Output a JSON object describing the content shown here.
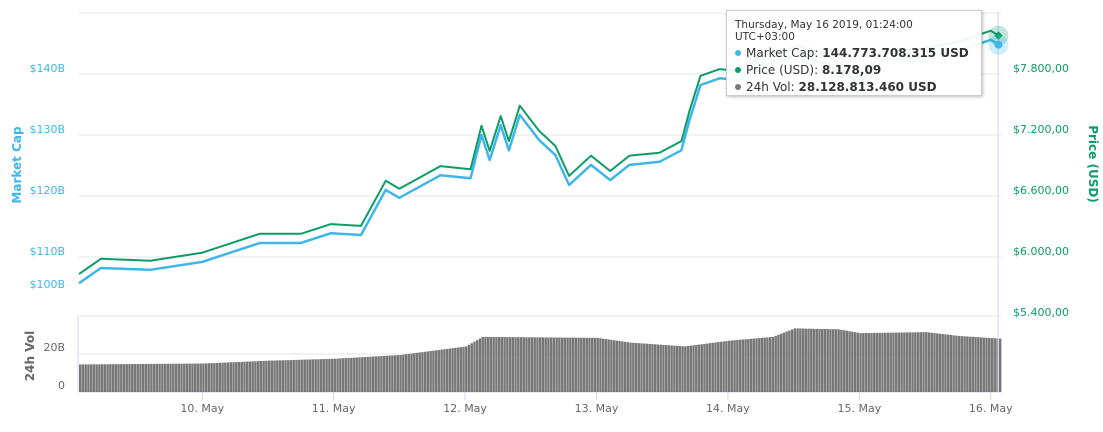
{
  "chart_data": {
    "type": "line",
    "xlabel": "",
    "x_ticks": [
      "10. May",
      "11. May",
      "12. May",
      "13. May",
      "14. May",
      "15. May",
      "16. May"
    ],
    "x_tick_dates": [
      "2019-05-10T00:00",
      "2019-05-11T00:00",
      "2019-05-12T00:00",
      "2019-05-13T00:00",
      "2019-05-14T00:00",
      "2019-05-15T00:00",
      "2019-05-16T00:00"
    ],
    "x_range": [
      "2019-05-09T01:30",
      "2019-05-16T01:30"
    ],
    "grid": true,
    "left_axis": {
      "label": "Market Cap",
      "ticks": [
        "$100B",
        "$110B",
        "$120B",
        "$130B",
        "$140B"
      ],
      "tick_values": [
        100,
        110,
        120,
        130,
        140
      ],
      "color": "#3fb6ea"
    },
    "right_axis": {
      "label": "Price (USD)",
      "ticks": [
        "$5.400,00",
        "$6.000,00",
        "$6.600,00",
        "$7.200,00",
        "$7.800,00"
      ],
      "tick_values": [
        5400,
        6000,
        6600,
        7200,
        7800
      ],
      "color": "#0c9d66"
    },
    "volume_axis": {
      "label": "24h Vol",
      "ticks": [
        "0",
        "20B"
      ],
      "tick_values": [
        0,
        20
      ],
      "range": [
        0,
        40
      ],
      "color": "#777777"
    },
    "x": [
      "2019-05-09T01:30",
      "2019-05-09T05:30",
      "2019-05-09T14:30",
      "2019-05-10T00:00",
      "2019-05-10T10:30",
      "2019-05-10T18:00",
      "2019-05-10T23:30",
      "2019-05-11T05:00",
      "2019-05-11T09:30",
      "2019-05-11T12:00",
      "2019-05-11T19:30",
      "2019-05-12T01:00",
      "2019-05-12T03:00",
      "2019-05-12T04:30",
      "2019-05-12T06:30",
      "2019-05-12T08:00",
      "2019-05-12T10:00",
      "2019-05-12T13:30",
      "2019-05-12T16:30",
      "2019-05-12T19:00",
      "2019-05-12T23:00",
      "2019-05-13T02:30",
      "2019-05-13T06:00",
      "2019-05-13T11:30",
      "2019-05-13T15:30",
      "2019-05-13T17:00",
      "2019-05-13T19:00",
      "2019-05-13T22:30",
      "2019-05-14T02:00",
      "2019-05-14T06:00",
      "2019-05-14T13:00",
      "2019-05-14T18:30",
      "2019-05-15T00:00",
      "2019-05-15T04:00",
      "2019-05-15T11:00",
      "2019-05-15T18:30",
      "2019-05-16T00:00",
      "2019-05-16T01:24"
    ],
    "series": [
      {
        "name": "Market Cap",
        "unit": "B USD",
        "color": "#3fb6ea",
        "values": [
          105.7,
          108.2,
          107.9,
          109.2,
          112.3,
          112.3,
          113.9,
          113.6,
          121.0,
          119.7,
          123.4,
          122.9,
          130.0,
          125.9,
          131.6,
          127.5,
          133.3,
          129.2,
          126.7,
          121.8,
          125.1,
          122.6,
          125.1,
          125.6,
          127.5,
          132.5,
          138.2,
          139.3,
          139.0,
          141.5,
          143.1,
          141.5,
          136.6,
          142.3,
          142.6,
          143.9,
          145.6,
          144.8
        ]
      },
      {
        "name": "Price (USD)",
        "unit": "USD",
        "color": "#0c9d66",
        "values": [
          5832,
          5982,
          5964,
          6042,
          6228,
          6228,
          6324,
          6306,
          6750,
          6672,
          6894,
          6864,
          7290,
          7044,
          7386,
          7140,
          7488,
          7242,
          7092,
          6798,
          6996,
          6846,
          6996,
          7026,
          7140,
          7440,
          7782,
          7848,
          7830,
          7980,
          8076,
          7980,
          7686,
          8028,
          8046,
          8124,
          8226,
          8178
        ]
      }
    ],
    "volume": {
      "name": "24h Vol",
      "unit": "B USD",
      "color": "#777777",
      "x": [
        "2019-05-09T01:30",
        "2019-05-10T00:00",
        "2019-05-10T12:00",
        "2019-05-11T00:00",
        "2019-05-11T12:00",
        "2019-05-12T00:00",
        "2019-05-12T03:00",
        "2019-05-13T00:00",
        "2019-05-13T06:00",
        "2019-05-13T16:00",
        "2019-05-14T00:00",
        "2019-05-14T08:00",
        "2019-05-14T12:00",
        "2019-05-14T20:00",
        "2019-05-15T00:00",
        "2019-05-15T12:00",
        "2019-05-15T18:00",
        "2019-05-16T01:30"
      ],
      "values": [
        14.5,
        15,
        16.5,
        17.5,
        19.5,
        24,
        29,
        28.5,
        26,
        24,
        27,
        29,
        33.5,
        33,
        31,
        31.5,
        29.5,
        28.1
      ]
    }
  },
  "tooltip": {
    "header": "Thursday, May 16 2019, 01:24:00 UTC+03:00",
    "rows": [
      {
        "label": "Market Cap: ",
        "value": "144.773.708.315 USD",
        "color": "#3fb6ea"
      },
      {
        "label": "Price (USD): ",
        "value": "8.178,09",
        "color": "#0c9d66"
      },
      {
        "label": "24h Vol: ",
        "value": "28.128.813.460 USD",
        "color": "#777777"
      }
    ]
  }
}
